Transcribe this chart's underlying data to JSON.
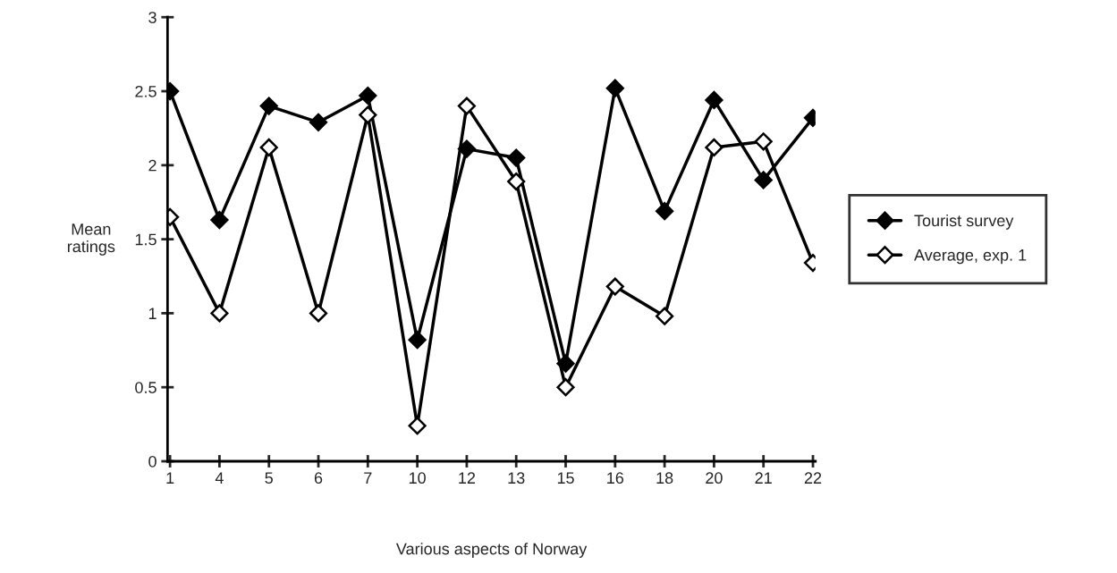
{
  "chart_data": {
    "type": "line",
    "xlabel": "Various aspects of Norway",
    "ylabel": "Mean\nratings",
    "categories": [
      "1",
      "4",
      "5",
      "6",
      "7",
      "10",
      "12",
      "13",
      "15",
      "16",
      "18",
      "20",
      "21",
      "22"
    ],
    "series": [
      {
        "name": "Tourist survey",
        "color": "#000000",
        "values": [
          2.5,
          1.63,
          2.4,
          2.29,
          2.47,
          0.82,
          2.11,
          2.05,
          0.66,
          2.52,
          1.69,
          2.44,
          1.9,
          2.32
        ]
      },
      {
        "name": "Average, exp. 1",
        "color": "#000000",
        "values": [
          1.65,
          1.0,
          2.12,
          1.0,
          2.34,
          0.24,
          2.4,
          1.89,
          0.5,
          1.18,
          0.98,
          2.12,
          2.16,
          1.34
        ]
      }
    ],
    "ylim": [
      0,
      3
    ],
    "yticks": [
      0,
      0.5,
      1,
      1.5,
      2,
      2.5,
      3
    ],
    "grid": false,
    "legend": "right",
    "marker": "diamond",
    "line_style": "solid"
  }
}
